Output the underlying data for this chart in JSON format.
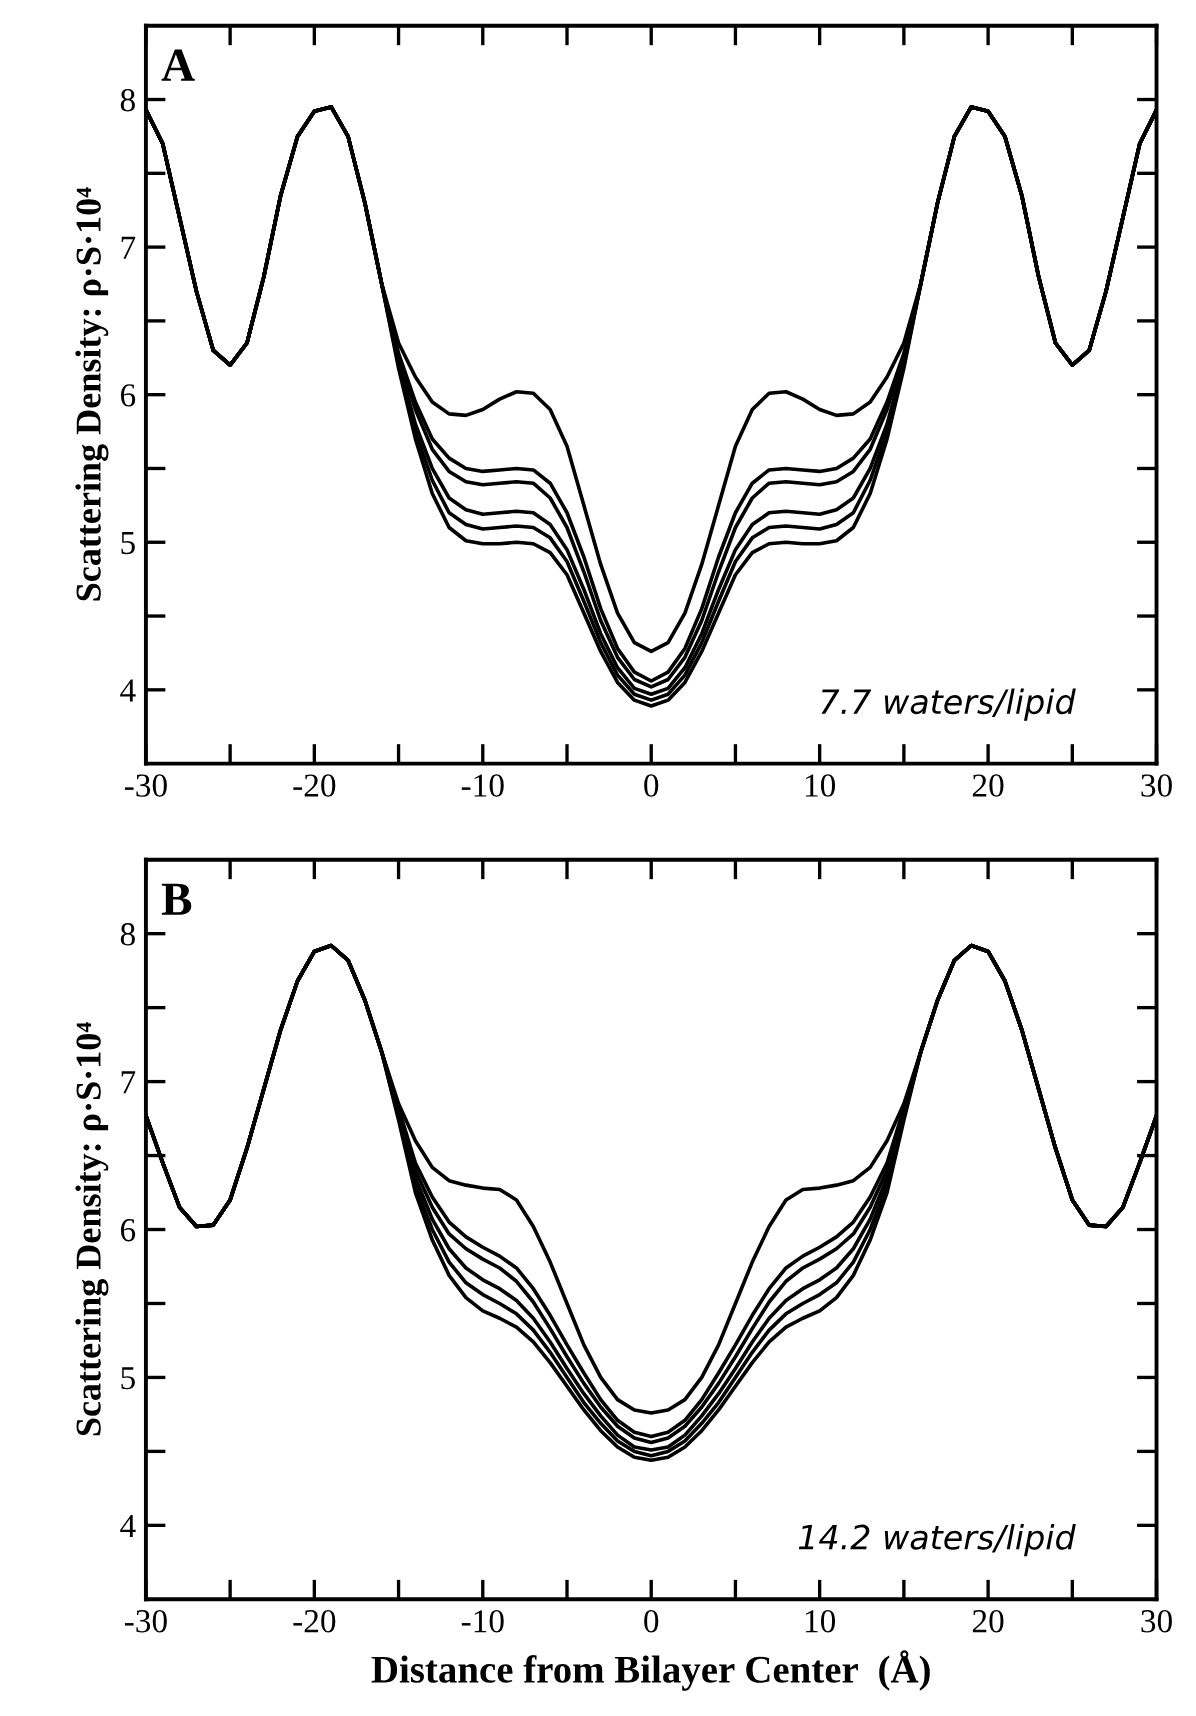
{
  "chart_data": [
    {
      "type": "line",
      "title": "A",
      "ylabel": "Scattering Density: ρ·S·10⁴",
      "annotations": [
        "7.7 waters/lipid"
      ],
      "line_style": "solid",
      "x": [
        -30,
        -29,
        -28,
        -27,
        -26,
        -25,
        -24,
        -23,
        -22,
        -21,
        -20,
        -19,
        -18,
        -17,
        -16,
        -15,
        -14,
        -13,
        -12,
        -11,
        -10,
        -9,
        -8,
        -7,
        -6,
        -5,
        -4,
        -3,
        -2,
        -1,
        0,
        1,
        2,
        3,
        4,
        5,
        6,
        7,
        8,
        9,
        10,
        11,
        12,
        13,
        14,
        15,
        16,
        17,
        18,
        19,
        20,
        21,
        22,
        23,
        24,
        25,
        26,
        27,
        28,
        29,
        30
      ],
      "series": [
        {
          "color": "#000000",
          "values": [
            7.93,
            7.7,
            7.2,
            6.7,
            6.3,
            6.2,
            6.35,
            6.8,
            7.35,
            7.75,
            7.92,
            7.95,
            7.75,
            7.3,
            6.75,
            6.35,
            6.12,
            5.95,
            5.87,
            5.86,
            5.9,
            5.97,
            6.02,
            6.01,
            5.9,
            5.65,
            5.25,
            4.85,
            4.52,
            4.32,
            4.26,
            4.32,
            4.52,
            4.85,
            5.25,
            5.65,
            5.9,
            6.01,
            6.02,
            5.97,
            5.9,
            5.86,
            5.87,
            5.95,
            6.12,
            6.35,
            6.75,
            7.3,
            7.75,
            7.95,
            7.92,
            7.75,
            7.35,
            6.8,
            6.35,
            6.2,
            6.3,
            6.7,
            7.2,
            7.7,
            7.93
          ]
        },
        {
          "color": "#000000",
          "values": [
            7.93,
            7.7,
            7.2,
            6.7,
            6.3,
            6.2,
            6.35,
            6.8,
            7.35,
            7.75,
            7.92,
            7.95,
            7.75,
            7.3,
            6.75,
            6.28,
            5.95,
            5.7,
            5.57,
            5.5,
            5.48,
            5.49,
            5.5,
            5.49,
            5.4,
            5.2,
            4.9,
            4.55,
            4.28,
            4.12,
            4.06,
            4.12,
            4.28,
            4.55,
            4.9,
            5.2,
            5.4,
            5.49,
            5.5,
            5.49,
            5.48,
            5.5,
            5.57,
            5.7,
            5.95,
            6.28,
            6.75,
            7.3,
            7.75,
            7.95,
            7.92,
            7.75,
            7.35,
            6.8,
            6.35,
            6.2,
            6.3,
            6.7,
            7.2,
            7.7,
            7.93
          ]
        },
        {
          "color": "#000000",
          "values": [
            7.93,
            7.7,
            7.2,
            6.7,
            6.3,
            6.2,
            6.35,
            6.8,
            7.35,
            7.75,
            7.92,
            7.95,
            7.75,
            7.3,
            6.75,
            6.26,
            5.9,
            5.63,
            5.48,
            5.41,
            5.39,
            5.4,
            5.41,
            5.4,
            5.3,
            5.1,
            4.8,
            4.47,
            4.22,
            4.07,
            4.02,
            4.07,
            4.22,
            4.47,
            4.8,
            5.1,
            5.3,
            5.4,
            5.41,
            5.4,
            5.39,
            5.41,
            5.48,
            5.63,
            5.9,
            6.26,
            6.75,
            7.3,
            7.75,
            7.95,
            7.92,
            7.75,
            7.35,
            6.8,
            6.35,
            6.2,
            6.3,
            6.7,
            7.2,
            7.7,
            7.93
          ]
        },
        {
          "color": "#000000",
          "values": [
            7.93,
            7.7,
            7.2,
            6.7,
            6.3,
            6.2,
            6.35,
            6.8,
            7.35,
            7.75,
            7.92,
            7.95,
            7.75,
            7.3,
            6.75,
            6.22,
            5.8,
            5.5,
            5.3,
            5.22,
            5.19,
            5.2,
            5.21,
            5.2,
            5.12,
            4.95,
            4.68,
            4.38,
            4.15,
            4.01,
            3.97,
            4.01,
            4.15,
            4.38,
            4.68,
            4.95,
            5.12,
            5.2,
            5.21,
            5.2,
            5.19,
            5.22,
            5.3,
            5.5,
            5.8,
            6.22,
            6.75,
            7.3,
            7.75,
            7.95,
            7.92,
            7.75,
            7.35,
            6.8,
            6.35,
            6.2,
            6.3,
            6.7,
            7.2,
            7.7,
            7.93
          ]
        },
        {
          "color": "#000000",
          "values": [
            7.93,
            7.7,
            7.2,
            6.7,
            6.3,
            6.2,
            6.35,
            6.8,
            7.35,
            7.75,
            7.92,
            7.95,
            7.75,
            7.3,
            6.75,
            6.2,
            5.75,
            5.42,
            5.2,
            5.12,
            5.09,
            5.1,
            5.11,
            5.1,
            5.03,
            4.87,
            4.6,
            4.32,
            4.1,
            3.97,
            3.93,
            3.97,
            4.1,
            4.32,
            4.6,
            4.87,
            5.03,
            5.1,
            5.11,
            5.1,
            5.09,
            5.12,
            5.2,
            5.42,
            5.75,
            6.2,
            6.75,
            7.3,
            7.75,
            7.95,
            7.92,
            7.75,
            7.35,
            6.8,
            6.35,
            6.2,
            6.3,
            6.7,
            7.2,
            7.7,
            7.93
          ]
        },
        {
          "color": "#000000",
          "values": [
            7.93,
            7.7,
            7.2,
            6.7,
            6.3,
            6.2,
            6.35,
            6.8,
            7.35,
            7.75,
            7.92,
            7.95,
            7.75,
            7.3,
            6.75,
            6.18,
            5.7,
            5.33,
            5.1,
            5.01,
            4.99,
            4.99,
            5.0,
            4.99,
            4.93,
            4.78,
            4.52,
            4.26,
            4.05,
            3.93,
            3.89,
            3.93,
            4.05,
            4.26,
            4.52,
            4.78,
            4.93,
            4.99,
            5.0,
            4.99,
            4.99,
            5.01,
            5.1,
            5.33,
            5.7,
            6.18,
            6.75,
            7.3,
            7.75,
            7.95,
            7.92,
            7.75,
            7.35,
            6.8,
            6.35,
            6.2,
            6.3,
            6.7,
            7.2,
            7.7,
            7.93
          ]
        }
      ],
      "xlim": [
        -30,
        30
      ],
      "ylim": [
        3.5,
        8.5
      ],
      "xticks": [
        -30,
        {
          "value": -25,
          "label": null
        },
        -20,
        {
          "value": -15,
          "label": null
        },
        -10,
        {
          "value": -5,
          "label": null
        },
        0,
        {
          "value": 5,
          "label": null
        },
        10,
        {
          "value": 15,
          "label": null
        },
        20,
        {
          "value": 25,
          "label": null
        },
        30
      ],
      "yticks": [
        4,
        {
          "value": 4.5,
          "label": null
        },
        5,
        {
          "value": 5.5,
          "label": null
        },
        6,
        {
          "value": 6.5,
          "label": null
        },
        7,
        {
          "value": 7.5,
          "label": null
        },
        8
      ]
    },
    {
      "type": "line",
      "title": "B",
      "ylabel": "Scattering Density: ρ·S·10⁴",
      "xlabel": "Distance from Bilayer Center  (Å)",
      "annotations": [
        "14.2 waters/lipid"
      ],
      "line_style": "solid",
      "x": [
        -30,
        -29,
        -28,
        -27,
        -26,
        -25,
        -24,
        -23,
        -22,
        -21,
        -20,
        -19,
        -18,
        -17,
        -16,
        -15,
        -14,
        -13,
        -12,
        -11,
        -10,
        -9,
        -8,
        -7,
        -6,
        -5,
        -4,
        -3,
        -2,
        -1,
        0,
        1,
        2,
        3,
        4,
        5,
        6,
        7,
        8,
        9,
        10,
        11,
        12,
        13,
        14,
        15,
        16,
        17,
        18,
        19,
        20,
        21,
        22,
        23,
        24,
        25,
        26,
        27,
        28,
        29,
        30
      ],
      "series": [
        {
          "color": "#000000",
          "values": [
            6.77,
            6.45,
            6.15,
            6.02,
            6.03,
            6.2,
            6.55,
            6.95,
            7.35,
            7.68,
            7.88,
            7.92,
            7.82,
            7.55,
            7.2,
            6.85,
            6.6,
            6.42,
            6.33,
            6.3,
            6.28,
            6.27,
            6.2,
            6.02,
            5.78,
            5.5,
            5.22,
            5.0,
            4.85,
            4.78,
            4.76,
            4.78,
            4.85,
            5.0,
            5.22,
            5.5,
            5.78,
            6.02,
            6.2,
            6.27,
            6.28,
            6.3,
            6.33,
            6.42,
            6.6,
            6.85,
            7.2,
            7.55,
            7.82,
            7.92,
            7.88,
            7.68,
            7.35,
            6.95,
            6.55,
            6.2,
            6.03,
            6.02,
            6.15,
            6.45,
            6.77
          ]
        },
        {
          "color": "#000000",
          "values": [
            6.77,
            6.45,
            6.15,
            6.02,
            6.03,
            6.2,
            6.55,
            6.95,
            7.35,
            7.68,
            7.88,
            7.92,
            7.82,
            7.55,
            7.2,
            6.82,
            6.45,
            6.22,
            6.05,
            5.95,
            5.88,
            5.82,
            5.74,
            5.6,
            5.42,
            5.22,
            5.03,
            4.85,
            4.71,
            4.63,
            4.6,
            4.63,
            4.71,
            4.85,
            5.03,
            5.22,
            5.42,
            5.6,
            5.74,
            5.82,
            5.88,
            5.95,
            6.05,
            6.22,
            6.45,
            6.82,
            7.2,
            7.55,
            7.82,
            7.92,
            7.88,
            7.68,
            7.35,
            6.95,
            6.55,
            6.2,
            6.03,
            6.02,
            6.15,
            6.45,
            6.77
          ]
        },
        {
          "color": "#000000",
          "values": [
            6.77,
            6.45,
            6.15,
            6.02,
            6.03,
            6.2,
            6.55,
            6.95,
            7.35,
            7.68,
            7.88,
            7.92,
            7.82,
            7.55,
            7.2,
            6.8,
            6.4,
            6.15,
            5.97,
            5.87,
            5.8,
            5.74,
            5.65,
            5.51,
            5.33,
            5.14,
            4.96,
            4.8,
            4.67,
            4.59,
            4.56,
            4.59,
            4.67,
            4.8,
            4.96,
            5.14,
            5.33,
            5.51,
            5.65,
            5.74,
            5.8,
            5.87,
            5.97,
            6.15,
            6.4,
            6.8,
            7.2,
            7.55,
            7.82,
            7.92,
            7.88,
            7.68,
            7.35,
            6.95,
            6.55,
            6.2,
            6.03,
            6.02,
            6.15,
            6.45,
            6.77
          ]
        },
        {
          "color": "#000000",
          "values": [
            6.77,
            6.45,
            6.15,
            6.02,
            6.03,
            6.2,
            6.55,
            6.95,
            7.35,
            7.68,
            7.88,
            7.92,
            7.82,
            7.55,
            7.2,
            6.78,
            6.35,
            6.07,
            5.87,
            5.74,
            5.66,
            5.6,
            5.52,
            5.4,
            5.24,
            5.06,
            4.89,
            4.74,
            4.61,
            4.53,
            4.51,
            4.53,
            4.61,
            4.74,
            4.89,
            5.06,
            5.24,
            5.4,
            5.52,
            5.6,
            5.66,
            5.74,
            5.87,
            6.07,
            6.35,
            6.78,
            7.2,
            7.55,
            7.82,
            7.92,
            7.88,
            7.68,
            7.35,
            6.95,
            6.55,
            6.2,
            6.03,
            6.02,
            6.15,
            6.45,
            6.77
          ]
        },
        {
          "color": "#000000",
          "values": [
            6.77,
            6.45,
            6.15,
            6.02,
            6.03,
            6.2,
            6.55,
            6.95,
            7.35,
            7.68,
            7.88,
            7.92,
            7.82,
            7.55,
            7.2,
            6.76,
            6.3,
            6.0,
            5.78,
            5.64,
            5.56,
            5.5,
            5.43,
            5.32,
            5.17,
            5.0,
            4.83,
            4.69,
            4.57,
            4.5,
            4.47,
            4.5,
            4.57,
            4.69,
            4.83,
            5.0,
            5.17,
            5.32,
            5.43,
            5.5,
            5.56,
            5.64,
            5.78,
            6.0,
            6.3,
            6.76,
            7.2,
            7.55,
            7.82,
            7.92,
            7.88,
            7.68,
            7.35,
            6.95,
            6.55,
            6.2,
            6.03,
            6.02,
            6.15,
            6.45,
            6.77
          ]
        },
        {
          "color": "#000000",
          "values": [
            6.77,
            6.45,
            6.15,
            6.02,
            6.03,
            6.2,
            6.55,
            6.95,
            7.35,
            7.68,
            7.88,
            7.92,
            7.82,
            7.55,
            7.2,
            6.74,
            6.25,
            5.93,
            5.69,
            5.54,
            5.45,
            5.4,
            5.34,
            5.24,
            5.1,
            4.94,
            4.78,
            4.64,
            4.53,
            4.46,
            4.44,
            4.46,
            4.53,
            4.64,
            4.78,
            4.94,
            5.1,
            5.24,
            5.34,
            5.4,
            5.45,
            5.54,
            5.69,
            5.93,
            6.25,
            6.74,
            7.2,
            7.55,
            7.82,
            7.92,
            7.88,
            7.68,
            7.35,
            6.95,
            6.55,
            6.2,
            6.03,
            6.02,
            6.15,
            6.45,
            6.77
          ]
        }
      ],
      "xlim": [
        -30,
        30
      ],
      "ylim": [
        3.5,
        8.5
      ],
      "xticks": [
        -30,
        {
          "value": -25,
          "label": null
        },
        -20,
        {
          "value": -15,
          "label": null
        },
        -10,
        {
          "value": -5,
          "label": null
        },
        0,
        {
          "value": 5,
          "label": null
        },
        10,
        {
          "value": 15,
          "label": null
        },
        20,
        {
          "value": 25,
          "label": null
        },
        30
      ],
      "yticks": [
        4,
        {
          "value": 4.5,
          "label": null
        },
        5,
        {
          "value": 5.5,
          "label": null
        },
        6,
        {
          "value": 6.5,
          "label": null
        },
        7,
        {
          "value": 7.5,
          "label": null
        },
        8
      ]
    }
  ]
}
